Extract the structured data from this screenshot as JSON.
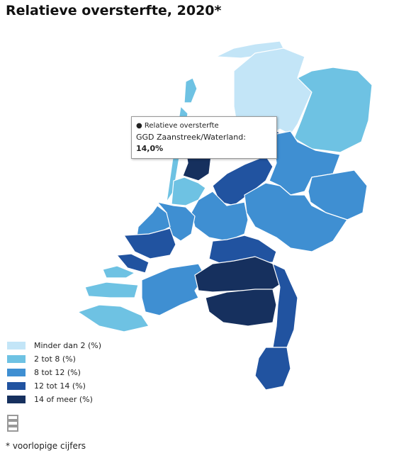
{
  "header": {
    "title": "Relatieve oversterfte, 2020*"
  },
  "tooltip": {
    "series": "Relatieve oversterfte",
    "region": "GGD Zaanstreek/Waterland:",
    "value": "14,0%"
  },
  "legend": {
    "items": [
      {
        "label": "Minder dan 2 (%)",
        "color": "#c3e5f7"
      },
      {
        "label": "2 tot 8 (%)",
        "color": "#6ec2e3"
      },
      {
        "label": "8 tot 12 (%)",
        "color": "#3f8fd2"
      },
      {
        "label": "12 tot 14 (%)",
        "color": "#2153a0"
      },
      {
        "label": "14 of meer (%)",
        "color": "#16305e"
      }
    ]
  },
  "footnote": "* voorlopige cijfers"
}
